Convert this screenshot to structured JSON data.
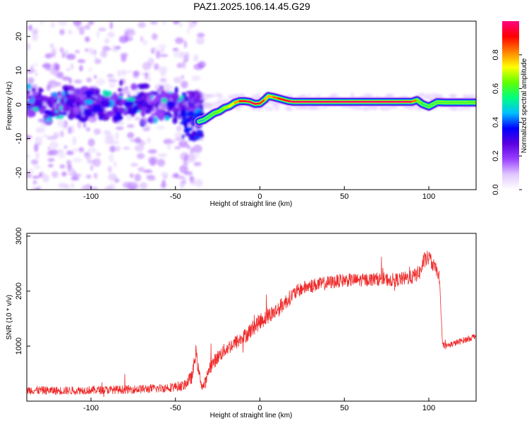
{
  "title": "PAZ1.2025.106.14.45.G29",
  "chart_data": [
    {
      "type": "heatmap",
      "xlabel": "Height of straight line (km)",
      "ylabel": "Frequency (Hz)",
      "xlim": [
        -138,
        128
      ],
      "ylim": [
        -25,
        24.5
      ],
      "xticks": [
        -100,
        -50,
        0,
        50,
        100
      ],
      "yticks": [
        -20,
        -10,
        0,
        10,
        20
      ],
      "colorbar": {
        "label": "Normalized spectral amplitude",
        "range": [
          0,
          1
        ],
        "ticks": [
          0.0,
          0.2,
          0.4,
          0.6,
          0.8
        ],
        "tick_labels": [
          "0.0",
          "0.2",
          "0.4",
          "0.6",
          "0.8"
        ],
        "colormap": [
          "#ffffff",
          "#e0c8ff",
          "#9a40ff",
          "#5a00e0",
          "#0000ff",
          "#00c0ff",
          "#00ff80",
          "#60ff00",
          "#ffff00",
          "#ff8000",
          "#ff0000",
          "#ff0080"
        ]
      },
      "ridge": {
        "x": [
          -36,
          -33,
          -30,
          -27,
          -24,
          -21,
          -18,
          -15,
          -12,
          -9,
          -6,
          -3,
          0,
          3,
          5,
          8,
          11,
          14,
          17,
          20,
          30,
          50,
          70,
          90,
          93,
          96,
          100,
          105,
          110,
          120,
          128
        ],
        "y": [
          -5,
          -4.5,
          -3.5,
          -2.5,
          -2,
          -1,
          -0.5,
          0.5,
          1,
          1,
          0.8,
          0.2,
          0.3,
          1.5,
          2.5,
          2.2,
          1.8,
          1.4,
          1,
          0.8,
          0.8,
          0.8,
          0.8,
          0.8,
          1.3,
          0.2,
          -0.6,
          0.7,
          0.6,
          0.6,
          0.6
        ],
        "amplitude": [
          0.45,
          0.5,
          0.55,
          0.6,
          0.62,
          0.66,
          0.7,
          0.75,
          0.85,
          0.95,
          0.98,
          0.98,
          0.95,
          0.8,
          0.75,
          0.82,
          0.88,
          0.92,
          0.96,
          0.98,
          0.99,
          0.99,
          0.99,
          0.98,
          0.7,
          0.55,
          0.55,
          0.6,
          0.6,
          0.6,
          0.6
        ]
      }
    },
    {
      "type": "line",
      "xlabel": "Height of straight line (km)",
      "ylabel": "SNR (10 * v/v)",
      "xlim": [
        -138,
        128
      ],
      "ylim": [
        0,
        3050
      ],
      "xticks": [
        -100,
        -50,
        0,
        50,
        100
      ],
      "yticks": [
        1000,
        2000,
        3000
      ],
      "color": "#ef2a2a",
      "series": [
        {
          "x": [
            -138,
            -120,
            -100,
            -80,
            -60,
            -45,
            -40,
            -38,
            -36,
            -34,
            -32,
            -30,
            -25,
            -20,
            -15,
            -10,
            -5,
            0,
            5,
            10,
            15,
            20,
            25,
            30,
            40,
            50,
            60,
            70,
            80,
            90,
            95,
            97,
            100,
            103,
            106,
            107,
            108,
            110,
            115,
            120,
            125,
            128
          ],
          "y": [
            200,
            190,
            200,
            210,
            230,
            280,
            450,
            900,
            500,
            250,
            350,
            600,
            800,
            950,
            1050,
            1150,
            1300,
            1450,
            1550,
            1650,
            1800,
            1950,
            2050,
            2100,
            2150,
            2200,
            2200,
            2220,
            2200,
            2250,
            2350,
            2550,
            2600,
            2450,
            2300,
            1800,
            1050,
            1000,
            1050,
            1100,
            1150,
            1200
          ],
          "noise": [
            150,
            150,
            150,
            150,
            160,
            180,
            250,
            300,
            200,
            200,
            220,
            250,
            250,
            260,
            270,
            280,
            290,
            300,
            300,
            300,
            280,
            260,
            250,
            250,
            250,
            240,
            240,
            240,
            250,
            260,
            280,
            300,
            300,
            250,
            200,
            150,
            120,
            110,
            110,
            110,
            110,
            110
          ]
        }
      ]
    }
  ]
}
